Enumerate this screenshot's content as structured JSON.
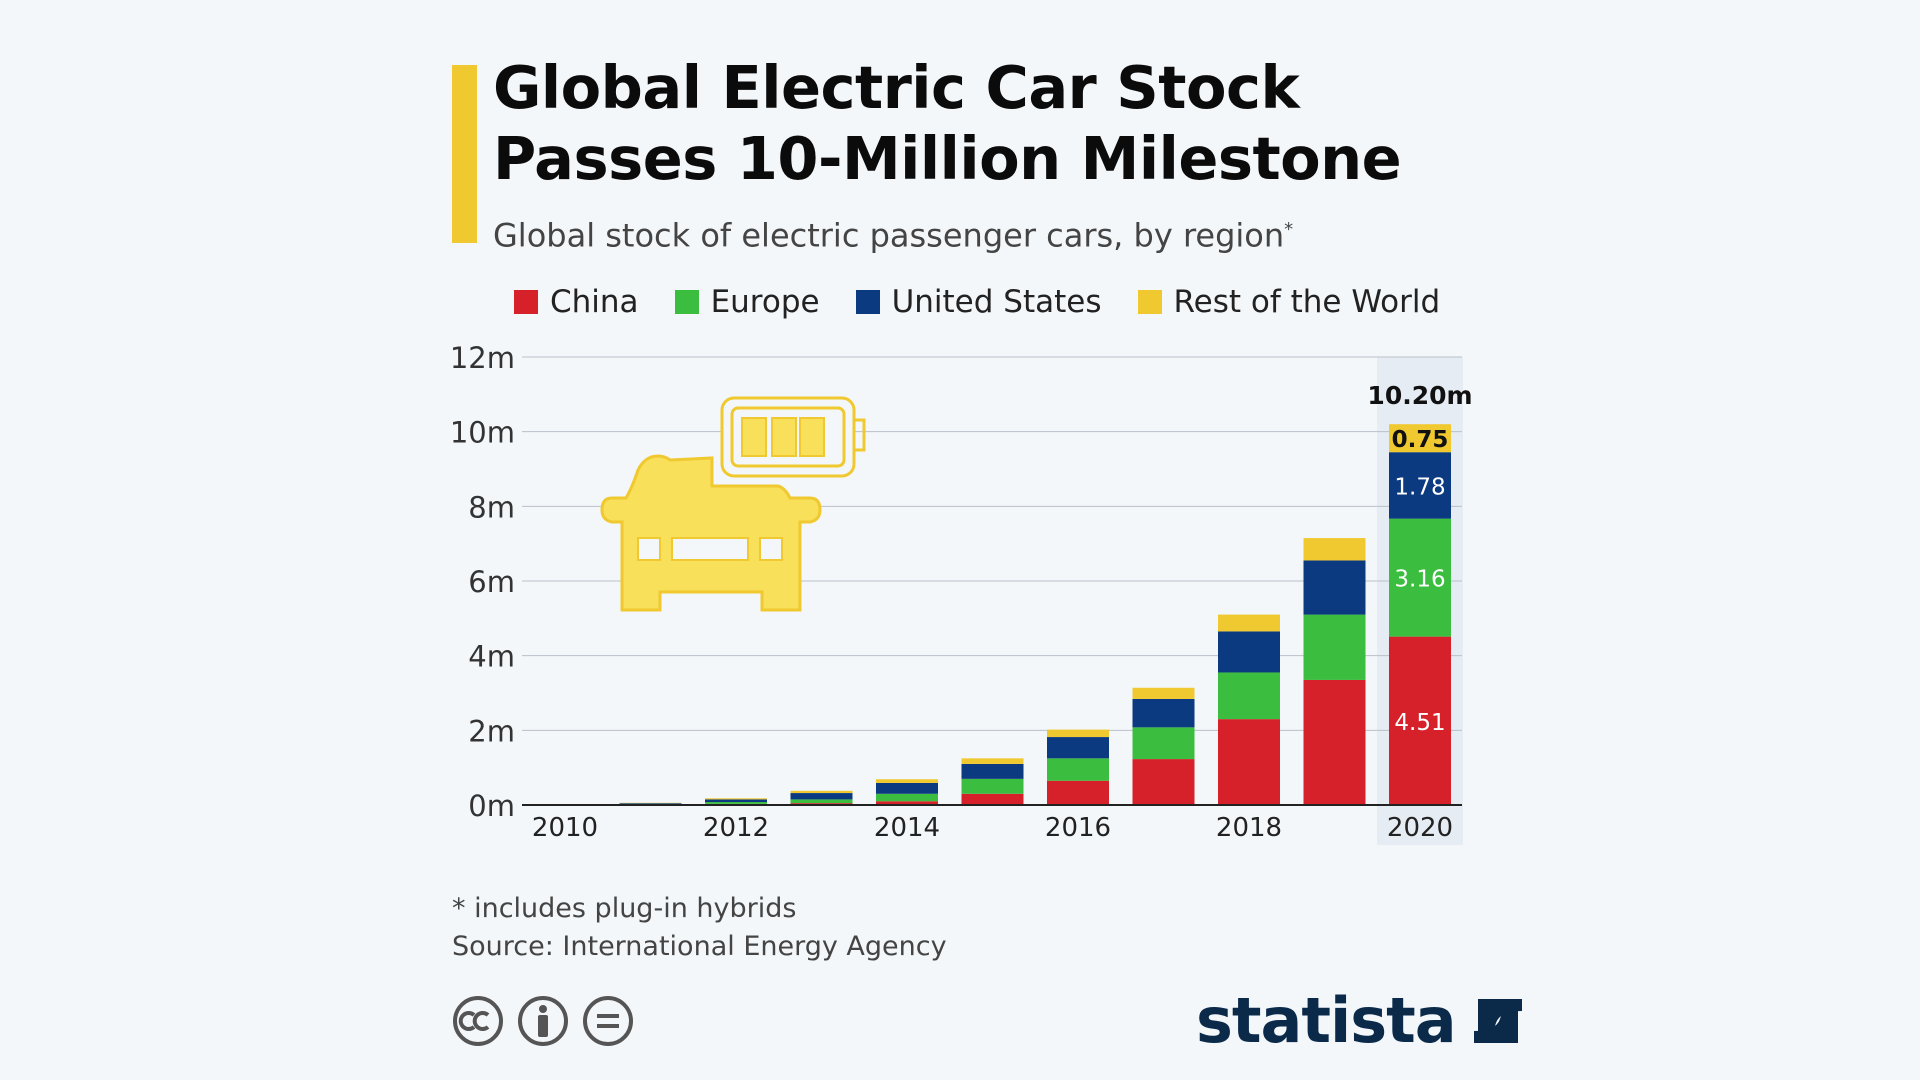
{
  "header": {
    "title_line1": "Global Electric Car Stock",
    "title_line2": "Passes 10-Million Milestone",
    "subtitle": "Global stock of electric passenger cars, by region",
    "subtitle_mark": "*"
  },
  "colors": {
    "accent": "#f0c930",
    "china": "#d6202a",
    "europe": "#3bbd3f",
    "united_states": "#0b3a80",
    "rest_of_world": "#f0c930",
    "highlight_band": "#e6ecf3",
    "brand": "#0b2a4a"
  },
  "chart_data": {
    "type": "bar",
    "stacked": true,
    "categories": [
      "2010",
      "2011",
      "2012",
      "2013",
      "2014",
      "2015",
      "2016",
      "2017",
      "2018",
      "2019",
      "2020"
    ],
    "x_tick_labels": [
      "2010",
      "2012",
      "2014",
      "2016",
      "2018",
      "2020"
    ],
    "series": [
      {
        "name": "China",
        "values": [
          0.01,
          0.01,
          0.03,
          0.05,
          0.1,
          0.3,
          0.65,
          1.23,
          2.3,
          3.35,
          4.51
        ]
      },
      {
        "name": "Europe",
        "values": [
          0.0,
          0.02,
          0.05,
          0.1,
          0.2,
          0.4,
          0.6,
          0.85,
          1.25,
          1.75,
          3.16
        ]
      },
      {
        "name": "United States",
        "values": [
          0.0,
          0.02,
          0.07,
          0.17,
          0.29,
          0.4,
          0.57,
          0.76,
          1.1,
          1.45,
          1.78
        ]
      },
      {
        "name": "Rest of the World",
        "values": [
          0.0,
          0.01,
          0.03,
          0.06,
          0.1,
          0.15,
          0.2,
          0.3,
          0.45,
          0.6,
          0.75
        ]
      }
    ],
    "ylim": [
      0,
      12
    ],
    "y_ticks": [
      "0m",
      "2m",
      "4m",
      "6m",
      "8m",
      "10m",
      "12m"
    ],
    "grid": true,
    "legend_position": "top",
    "highlighted_category": "2020",
    "total_label": "10.20m",
    "segment_labels": [
      "4.51",
      "3.16",
      "1.78",
      "0.75"
    ]
  },
  "footer": {
    "note": "* includes plug-in hybrids",
    "source": "Source: International Energy Agency",
    "brand": "statista"
  }
}
